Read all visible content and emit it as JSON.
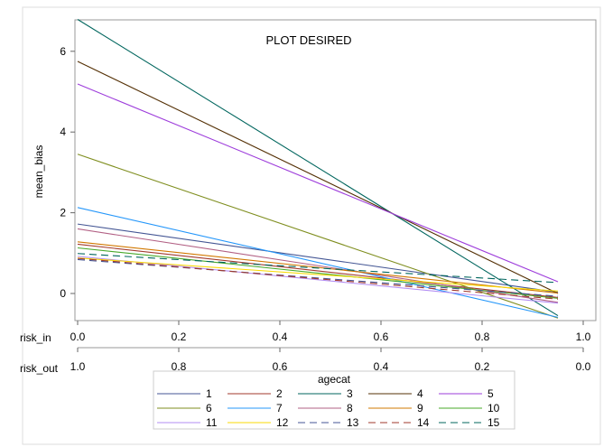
{
  "chart_data": {
    "type": "line",
    "title": "PLOT DESIRED",
    "ylabel": "mean_bias",
    "xlabel": "risk_in",
    "x2label": "risk_out",
    "xlim": [
      0,
      1
    ],
    "ylim": [
      -0.6,
      6.8
    ],
    "xticks": [
      "0.0",
      "0.2",
      "0.4",
      "0.6",
      "0.8",
      "1.0"
    ],
    "x2ticks": [
      "1.0",
      "0.8",
      "0.6",
      "0.4",
      "0.2",
      "0.0"
    ],
    "yticks": [
      "0",
      "2",
      "4",
      "6"
    ],
    "grid": false,
    "legend": {
      "title": "agecat",
      "position": "bottom"
    },
    "x": [
      0,
      0.95
    ],
    "series": [
      {
        "name": "1",
        "color": "#445694",
        "dash": false,
        "values": [
          1.72,
          0.03
        ]
      },
      {
        "name": "2",
        "color": "#A23A2E",
        "dash": false,
        "values": [
          1.22,
          -0.1
        ]
      },
      {
        "name": "3",
        "color": "#01665E",
        "dash": false,
        "values": [
          6.79,
          -0.55
        ]
      },
      {
        "name": "4",
        "color": "#543005",
        "dash": false,
        "values": [
          5.75,
          0.0
        ]
      },
      {
        "name": "5",
        "color": "#9D3CDB",
        "dash": false,
        "values": [
          5.19,
          0.29
        ]
      },
      {
        "name": "6",
        "color": "#7F8E1F",
        "dash": false,
        "values": [
          3.45,
          -0.61
        ]
      },
      {
        "name": "7",
        "color": "#2597FA",
        "dash": false,
        "values": [
          2.13,
          -0.59
        ]
      },
      {
        "name": "8",
        "color": "#B26084",
        "dash": false,
        "values": [
          1.6,
          -0.22
        ]
      },
      {
        "name": "9",
        "color": "#D17800",
        "dash": false,
        "values": [
          1.28,
          0.01
        ]
      },
      {
        "name": "10",
        "color": "#47A82A",
        "dash": false,
        "values": [
          1.13,
          -0.12
        ]
      },
      {
        "name": "11",
        "color": "#B38EF3",
        "dash": false,
        "values": [
          0.92,
          -0.24
        ]
      },
      {
        "name": "12",
        "color": "#F9DA04",
        "dash": false,
        "values": [
          0.88,
          0.06
        ]
      },
      {
        "name": "13",
        "color": "#445694",
        "dash": true,
        "values": [
          0.84,
          -0.07
        ]
      },
      {
        "name": "14",
        "color": "#A23A2E",
        "dash": true,
        "values": [
          0.87,
          -0.14
        ]
      },
      {
        "name": "15",
        "color": "#01665E",
        "dash": true,
        "values": [
          0.99,
          0.27
        ]
      }
    ]
  }
}
